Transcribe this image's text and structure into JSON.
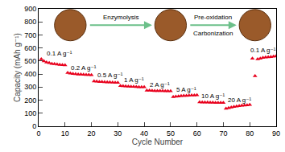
{
  "chart_data": {
    "type": "scatter",
    "x_label": "Cycle Number",
    "y_label": "Capacity (mAh g⁻¹)",
    "x": [
      1,
      2,
      3,
      4,
      5,
      6,
      7,
      8,
      9,
      10,
      11,
      12,
      13,
      14,
      15,
      16,
      17,
      18,
      19,
      20,
      21,
      22,
      23,
      24,
      25,
      26,
      27,
      28,
      29,
      30,
      31,
      32,
      33,
      34,
      35,
      36,
      37,
      38,
      39,
      40,
      41,
      42,
      43,
      44,
      45,
      46,
      47,
      48,
      49,
      50,
      51,
      52,
      53,
      54,
      55,
      56,
      57,
      58,
      59,
      60,
      61,
      62,
      63,
      64,
      65,
      66,
      67,
      68,
      69,
      70,
      71,
      72,
      73,
      74,
      75,
      76,
      77,
      78,
      79,
      80,
      81,
      82,
      83,
      84,
      85,
      86,
      87,
      88,
      89,
      90
    ],
    "values": [
      515,
      500,
      490,
      485,
      480,
      478,
      475,
      472,
      470,
      468,
      410,
      405,
      402,
      400,
      398,
      397,
      396,
      395,
      394,
      393,
      345,
      343,
      341,
      340,
      339,
      338,
      337,
      336,
      335,
      335,
      310,
      308,
      306,
      305,
      304,
      303,
      302,
      301,
      300,
      300,
      275,
      274,
      273,
      272,
      272,
      271,
      271,
      270,
      270,
      270,
      225,
      228,
      230,
      232,
      234,
      235,
      236,
      237,
      238,
      239,
      185,
      184,
      183,
      183,
      182,
      182,
      181,
      181,
      180,
      180,
      135,
      140,
      145,
      150,
      153,
      156,
      158,
      160,
      162,
      165,
      520,
      385,
      515,
      520,
      525,
      528,
      530,
      532,
      535,
      538
    ],
    "color": "#e8001c",
    "marker": "triangle-up",
    "xlim": [
      0,
      90
    ],
    "xticks": [
      0,
      10,
      20,
      30,
      40,
      50,
      60,
      70,
      80,
      90
    ],
    "ylim": [
      0,
      900
    ],
    "yticks": [
      0,
      100,
      200,
      300,
      400,
      500,
      600,
      700,
      800,
      900
    ],
    "grid": false,
    "annotations": [
      {
        "text": "0.1 A g⁻¹",
        "x": 8,
        "y": 555
      },
      {
        "text": "0.2 A g⁻¹",
        "x": 17,
        "y": 450
      },
      {
        "text": "0.5 A g⁻¹",
        "x": 27,
        "y": 390
      },
      {
        "text": "1 A g⁻¹",
        "x": 36,
        "y": 355
      },
      {
        "text": "2 A g⁻¹",
        "x": 46,
        "y": 320
      },
      {
        "text": "5 A g⁻¹",
        "x": 56,
        "y": 280
      },
      {
        "text": "10 A g⁻¹",
        "x": 66,
        "y": 230
      },
      {
        "text": "20 A g⁻¹",
        "x": 76,
        "y": 200
      },
      {
        "text": "0.1 A g⁻¹",
        "x": 85,
        "y": 585
      },
      {
        "text": "Enzymolysis",
        "x": 31,
        "y": 835
      },
      {
        "text": "Pre-oxidation",
        "x": 66,
        "y": 835
      },
      {
        "text": "Carbonization",
        "x": 66,
        "y": 715
      }
    ]
  }
}
